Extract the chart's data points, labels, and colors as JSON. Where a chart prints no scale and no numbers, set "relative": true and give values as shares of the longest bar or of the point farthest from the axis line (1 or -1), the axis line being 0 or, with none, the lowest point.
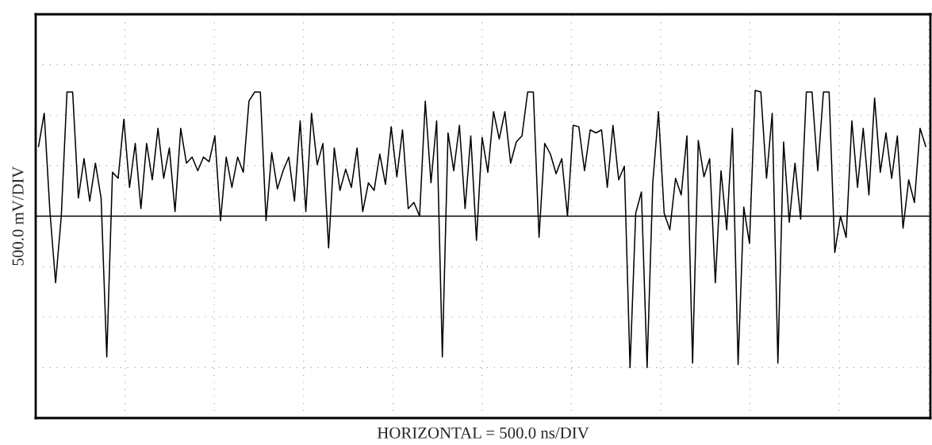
{
  "chart_data": {
    "type": "line",
    "relative": true,
    "xlabel": "HORIZONTAL = 500.0 ns/DIV",
    "ylabel": "500.0 mV/DIV",
    "grid": true,
    "tick_labels": false,
    "legend": false,
    "marker": "none",
    "line_style": "solid",
    "categories": [
      null,
      null,
      null,
      null,
      null,
      null,
      null,
      null,
      null,
      null,
      null,
      null,
      null,
      null,
      null,
      null,
      null,
      null,
      null,
      null,
      null,
      null,
      null,
      null,
      null,
      null,
      null,
      null,
      null,
      null,
      null,
      null,
      null,
      null,
      null,
      null,
      null,
      null,
      null,
      null,
      null,
      null,
      null,
      null,
      null,
      null,
      null,
      null,
      null,
      null,
      null,
      null,
      null,
      null,
      null,
      null,
      null,
      null,
      null,
      null,
      null,
      null,
      null,
      null,
      null,
      null,
      null,
      null,
      null,
      null,
      null,
      null,
      null,
      null,
      null,
      null,
      null,
      null,
      null,
      null,
      null,
      null,
      null,
      null,
      null,
      null,
      null,
      null,
      null,
      null,
      null,
      null,
      null,
      null,
      null,
      null,
      null,
      null,
      null,
      null,
      null,
      null,
      null,
      null,
      null,
      null,
      null,
      null,
      null,
      null,
      null,
      null,
      null,
      null,
      null,
      null,
      null,
      null,
      null,
      null,
      null,
      null,
      null,
      null,
      null,
      null,
      null,
      null,
      null,
      null,
      null,
      null,
      null,
      null,
      null,
      null,
      null,
      null,
      null,
      null,
      null,
      null,
      null,
      null,
      null,
      null,
      null,
      null,
      null,
      null,
      null,
      null,
      null,
      null,
      null,
      null,
      null
    ],
    "series": [
      {
        "color": "#000000",
        "values": [
          0.46,
          0.68,
          0.03,
          -0.44,
          0,
          0.82,
          0.82,
          0.12,
          0.38,
          0.1,
          0.35,
          0.12,
          -0.93,
          0.29,
          0.25,
          0.64,
          0.19,
          0.48,
          0.05,
          0.48,
          0.24,
          0.58,
          0.25,
          0.45,
          0.03,
          0.58,
          0.35,
          0.39,
          0.3,
          0.39,
          0.36,
          0.53,
          -0.03,
          0.39,
          0.19,
          0.39,
          0.29,
          0.76,
          0.82,
          0.82,
          -0.03,
          0.42,
          0.18,
          0.3,
          0.39,
          0.1,
          0.63,
          0.03,
          0.68,
          0.34,
          0.48,
          -0.21,
          0.45,
          0.17,
          0.31,
          0.19,
          0.45,
          0.03,
          0.22,
          0.17,
          0.41,
          0.21,
          0.59,
          0.26,
          0.57,
          0.05,
          0.09,
          0,
          0.76,
          0.22,
          0.63,
          -0.93,
          0.55,
          0.3,
          0.6,
          0.05,
          0.53,
          -0.16,
          0.52,
          0.29,
          0.69,
          0.51,
          0.69,
          0.35,
          0.49,
          0.53,
          0.82,
          0.82,
          -0.14,
          0.48,
          0.41,
          0.28,
          0.38,
          0,
          0.6,
          0.59,
          0.3,
          0.57,
          0.55,
          0.57,
          0.19,
          0.6,
          0.24,
          0.33,
          -1,
          0.02,
          0.16,
          -1,
          0.22,
          0.69,
          0.02,
          -0.09,
          0.25,
          0.14,
          0.53,
          -0.97,
          0.5,
          0.26,
          0.38,
          -0.44,
          0.3,
          -0.09,
          0.58,
          -0.98,
          0.06,
          -0.18,
          0.83,
          0.82,
          0.25,
          0.68,
          -0.97,
          0.49,
          -0.04,
          0.35,
          -0.02,
          0.82,
          0.82,
          0.3,
          0.82,
          0.82,
          -0.24,
          0,
          -0.14,
          0.63,
          0.19,
          0.58,
          0.14,
          0.78,
          0.29,
          0.55,
          0.25,
          0.53,
          -0.08,
          0.24,
          0.09,
          0.58,
          0.46
        ]
      }
    ]
  }
}
